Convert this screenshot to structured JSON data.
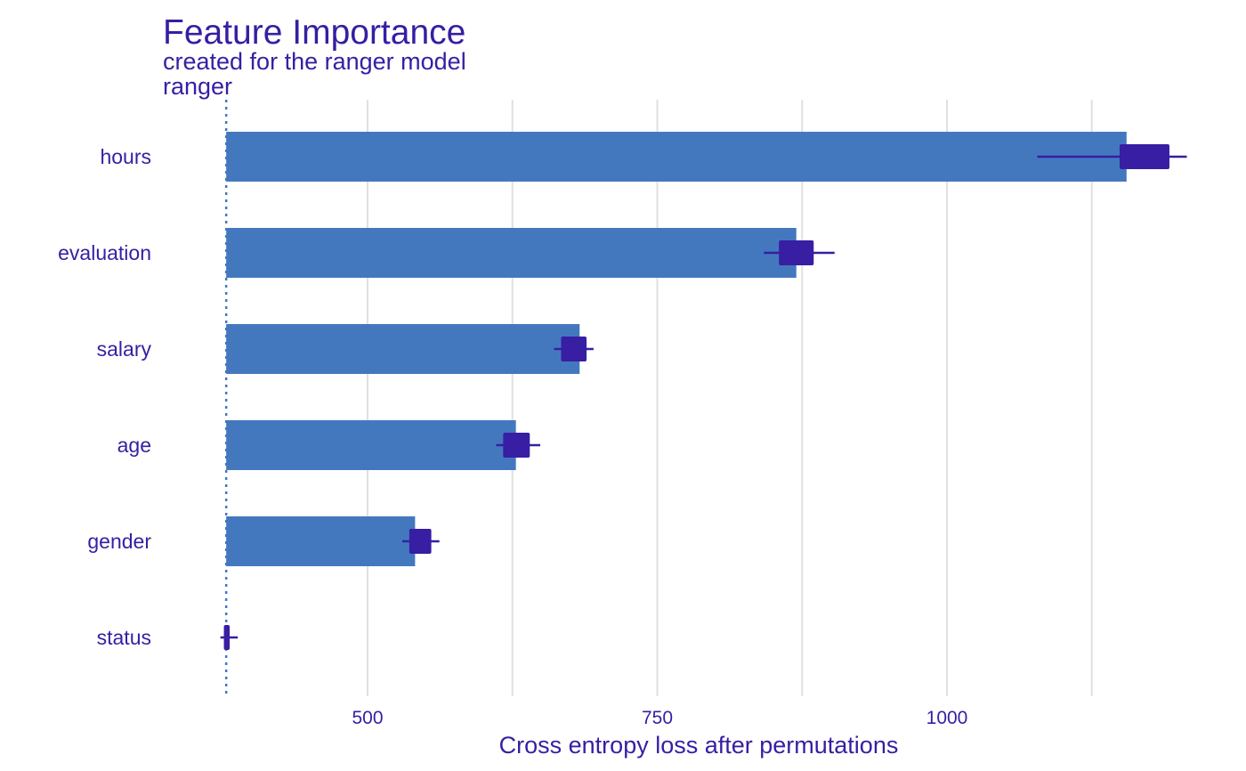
{
  "chart_data": {
    "type": "bar",
    "title": "Feature Importance",
    "subtitle": "created for the ranger model",
    "model_label": "ranger",
    "xlabel": "Cross entropy loss after permutations",
    "ylabel": "",
    "xlim": [
      300,
      1420
    ],
    "baseline": 378,
    "x_ticks": [
      500,
      750,
      1000
    ],
    "x_gridlines": [
      500,
      625,
      750,
      875,
      1000,
      1125
    ],
    "grid": true,
    "legend": "none",
    "colors": {
      "bar": "#4378bf",
      "marker": "#371ea3",
      "grid": "#e0e0e0",
      "baseline": "#4378bf",
      "text": "#371ea3"
    },
    "categories": [
      "hours",
      "evaluation",
      "salary",
      "age",
      "gender",
      "status"
    ],
    "values": [
      1155,
      870,
      683,
      628,
      541,
      378
    ],
    "boxes": [
      {
        "min": 1078,
        "q1": 1149,
        "q3": 1192,
        "max": 1207
      },
      {
        "min": 842,
        "q1": 855,
        "q3": 885,
        "max": 903
      },
      {
        "min": 661,
        "q1": 667,
        "q3": 689,
        "max": 695
      },
      {
        "min": 611,
        "q1": 617,
        "q3": 640,
        "max": 649
      },
      {
        "min": 530,
        "q1": 536,
        "q3": 555,
        "max": 562
      },
      {
        "min": 373,
        "q1": 376,
        "q3": 381,
        "max": 388
      }
    ]
  }
}
